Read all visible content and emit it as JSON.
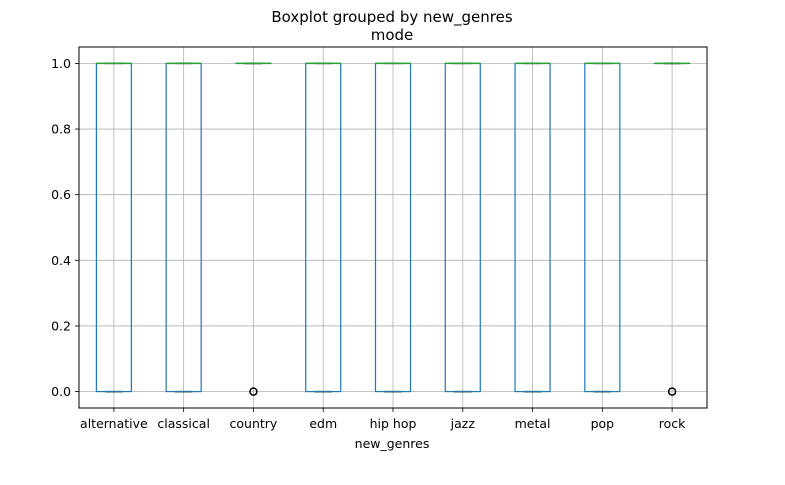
{
  "chart_data": {
    "type": "box",
    "title": "Boxplot grouped by new_genres",
    "subtitle": "mode",
    "xlabel": "new_genres",
    "ylabel": "",
    "ylim": [
      -0.05,
      1.05
    ],
    "yticks": [
      0.0,
      0.2,
      0.4,
      0.6,
      0.8,
      1.0
    ],
    "ytick_labels": [
      "0.0",
      "0.2",
      "0.4",
      "0.6",
      "0.8",
      "1.0"
    ],
    "grid": true,
    "categories": [
      "alternative",
      "classical",
      "country",
      "edm",
      "hip hop",
      "jazz",
      "metal",
      "pop",
      "rock"
    ],
    "boxes": [
      {
        "q1": 0,
        "median": 1,
        "q3": 1,
        "whisker_low": 0,
        "whisker_high": 1,
        "outliers": []
      },
      {
        "q1": 0,
        "median": 1,
        "q3": 1,
        "whisker_low": 0,
        "whisker_high": 1,
        "outliers": []
      },
      {
        "q1": 1,
        "median": 1,
        "q3": 1,
        "whisker_low": 1,
        "whisker_high": 1,
        "outliers": [
          0
        ]
      },
      {
        "q1": 0,
        "median": 1,
        "q3": 1,
        "whisker_low": 0,
        "whisker_high": 1,
        "outliers": []
      },
      {
        "q1": 0,
        "median": 1,
        "q3": 1,
        "whisker_low": 0,
        "whisker_high": 1,
        "outliers": []
      },
      {
        "q1": 0,
        "median": 1,
        "q3": 1,
        "whisker_low": 0,
        "whisker_high": 1,
        "outliers": []
      },
      {
        "q1": 0,
        "median": 1,
        "q3": 1,
        "whisker_low": 0,
        "whisker_high": 1,
        "outliers": []
      },
      {
        "q1": 0,
        "median": 1,
        "q3": 1,
        "whisker_low": 0,
        "whisker_high": 1,
        "outliers": []
      },
      {
        "q1": 1,
        "median": 1,
        "q3": 1,
        "whisker_low": 1,
        "whisker_high": 1,
        "outliers": [
          0
        ]
      }
    ],
    "colors": {
      "box": "#1f77b4",
      "median": "#2ca02c",
      "whisker": "#000000",
      "grid": "#b0b0b0",
      "outlier": "#000000"
    }
  }
}
